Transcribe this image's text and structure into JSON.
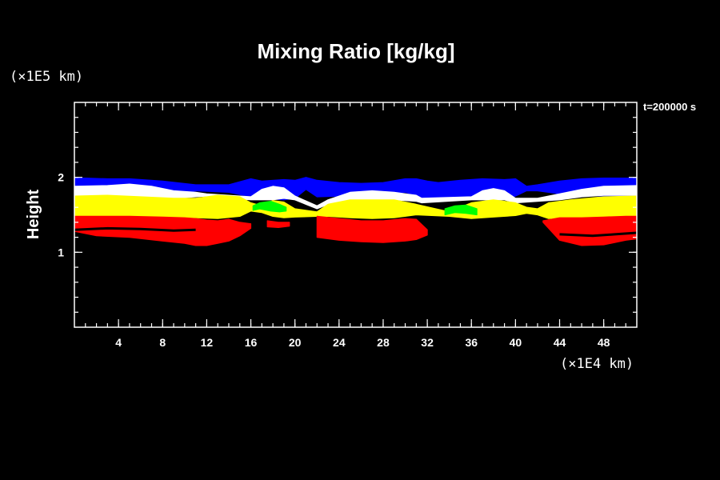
{
  "chart_data": {
    "type": "heatmap",
    "title": "Mixing Ratio [kg/kg]",
    "time_label": "t=200000 s",
    "ylabel": "Height",
    "y_unit_label": "(×1E5 km)",
    "x_unit_label": "(×1E4 km)",
    "xlim": [
      0,
      51
    ],
    "ylim": [
      0,
      3
    ],
    "x_ticks": [
      4,
      8,
      12,
      16,
      20,
      24,
      28,
      32,
      36,
      40,
      44,
      48
    ],
    "y_ticks": [
      1,
      2
    ],
    "x_minor_step": 1,
    "y_minor_step": 0.2,
    "colors": {
      "background": "#000000",
      "axis": "#ffffff",
      "blue": "#0000ff",
      "white": "#ffffff",
      "yellow": "#ffff00",
      "green": "#00ff00",
      "red": "#ff0000"
    },
    "bands": [
      {
        "name": "blue",
        "color": "#0000ff",
        "x": [
          0,
          1,
          3,
          5,
          8,
          11,
          14,
          16,
          17,
          19,
          20,
          21,
          22,
          24,
          26,
          28,
          30,
          31,
          32,
          33,
          35,
          37,
          39,
          40,
          41,
          42,
          44,
          46,
          48,
          51
        ],
        "top": [
          1.99,
          1.99,
          1.98,
          1.98,
          1.95,
          1.9,
          1.9,
          1.98,
          1.95,
          1.97,
          1.96,
          2.0,
          1.96,
          1.93,
          1.92,
          1.93,
          1.98,
          1.98,
          1.95,
          1.93,
          1.96,
          1.98,
          1.97,
          1.98,
          1.88,
          1.9,
          1.95,
          1.98,
          1.99,
          1.99
        ],
        "bottom": [
          1.75,
          1.76,
          1.76,
          1.75,
          1.74,
          1.82,
          1.8,
          1.74,
          1.72,
          1.7,
          1.72,
          1.84,
          1.74,
          1.75,
          1.78,
          1.78,
          1.8,
          1.76,
          1.7,
          1.7,
          1.74,
          1.72,
          1.71,
          1.75,
          1.82,
          1.82,
          1.78,
          1.76,
          1.75,
          1.75
        ]
      },
      {
        "name": "white",
        "color": "#ffffff",
        "x": [
          0,
          3,
          5,
          7,
          9,
          11,
          12,
          16,
          17,
          18,
          19,
          20,
          22,
          23,
          25,
          27,
          29,
          31,
          31.5,
          36,
          37,
          38,
          39,
          40,
          42,
          44,
          46,
          48,
          51
        ],
        "top": [
          1.88,
          1.89,
          1.91,
          1.88,
          1.82,
          1.8,
          1.78,
          1.74,
          1.84,
          1.88,
          1.86,
          1.75,
          1.62,
          1.7,
          1.8,
          1.82,
          1.8,
          1.76,
          1.72,
          1.74,
          1.82,
          1.85,
          1.82,
          1.72,
          1.72,
          1.78,
          1.84,
          1.88,
          1.89
        ],
        "bottom": [
          1.76,
          1.76,
          1.75,
          1.73,
          1.72,
          1.74,
          1.75,
          1.7,
          1.7,
          1.7,
          1.72,
          1.7,
          1.58,
          1.64,
          1.7,
          1.7,
          1.7,
          1.68,
          1.66,
          1.7,
          1.7,
          1.7,
          1.7,
          1.66,
          1.68,
          1.7,
          1.74,
          1.76,
          1.76
        ]
      },
      {
        "name": "yellow",
        "color": "#ffff00",
        "x": [
          0,
          3,
          6,
          9,
          11,
          13,
          15,
          16,
          17,
          18,
          19,
          20,
          22,
          23,
          25,
          27,
          29,
          31,
          34,
          36,
          38,
          40,
          41,
          42,
          43,
          45,
          48,
          51
        ],
        "top": [
          1.75,
          1.76,
          1.74,
          1.72,
          1.72,
          1.76,
          1.74,
          1.66,
          1.62,
          1.69,
          1.67,
          1.58,
          1.54,
          1.64,
          1.7,
          1.7,
          1.7,
          1.64,
          1.54,
          1.66,
          1.7,
          1.66,
          1.6,
          1.58,
          1.66,
          1.7,
          1.74,
          1.75
        ],
        "bottom": [
          1.48,
          1.48,
          1.48,
          1.47,
          1.46,
          1.45,
          1.48,
          1.55,
          1.53,
          1.48,
          1.46,
          1.47,
          1.48,
          1.48,
          1.46,
          1.45,
          1.46,
          1.5,
          1.48,
          1.45,
          1.47,
          1.49,
          1.52,
          1.5,
          1.45,
          1.46,
          1.47,
          1.48
        ]
      },
      {
        "name": "green",
        "color": "#00ff00",
        "x": [
          16.2,
          16.8,
          17.8,
          18.6,
          19.2
        ],
        "top": [
          1.62,
          1.66,
          1.68,
          1.64,
          1.6
        ],
        "bottom": [
          1.56,
          1.58,
          1.55,
          1.54,
          1.55
        ]
      },
      {
        "name": "green",
        "color": "#00ff00",
        "x": [
          33.6,
          34.5,
          35.5,
          36.5
        ],
        "top": [
          1.58,
          1.62,
          1.63,
          1.58
        ],
        "bottom": [
          1.5,
          1.53,
          1.52,
          1.5
        ]
      },
      {
        "name": "red",
        "color": "#ff0000",
        "x": [
          0,
          2,
          5,
          8,
          10,
          11,
          12,
          13,
          14,
          15,
          16
        ],
        "top": [
          1.48,
          1.48,
          1.48,
          1.47,
          1.46,
          1.45,
          1.43,
          1.42,
          1.44,
          1.4,
          1.38
        ],
        "bottom": [
          1.28,
          1.22,
          1.2,
          1.15,
          1.12,
          1.09,
          1.09,
          1.12,
          1.15,
          1.22,
          1.32
        ]
      },
      {
        "name": "red",
        "color": "#ff0000",
        "x": [
          17.5,
          18.5,
          19.5
        ],
        "top": [
          1.42,
          1.4,
          1.4
        ],
        "bottom": [
          1.34,
          1.33,
          1.35
        ]
      },
      {
        "name": "red",
        "color": "#ff0000",
        "x": [
          22,
          24,
          26,
          28,
          30,
          31,
          32
        ],
        "top": [
          1.48,
          1.45,
          1.42,
          1.42,
          1.45,
          1.44,
          1.3
        ],
        "bottom": [
          1.2,
          1.16,
          1.14,
          1.13,
          1.15,
          1.17,
          1.23
        ]
      },
      {
        "name": "red",
        "color": "#ff0000",
        "x": [
          42.5,
          44,
          46,
          48,
          50,
          51
        ],
        "top": [
          1.42,
          1.46,
          1.46,
          1.47,
          1.48,
          1.48
        ],
        "bottom": [
          1.4,
          1.16,
          1.09,
          1.1,
          1.16,
          1.18
        ]
      }
    ],
    "dark_streaks": [
      {
        "x": [
          0,
          3,
          6,
          9,
          11
        ],
        "y": [
          1.3,
          1.32,
          1.31,
          1.29,
          1.3
        ]
      },
      {
        "x": [
          44,
          47,
          49,
          51
        ],
        "y": [
          1.24,
          1.22,
          1.24,
          1.26
        ]
      }
    ]
  }
}
